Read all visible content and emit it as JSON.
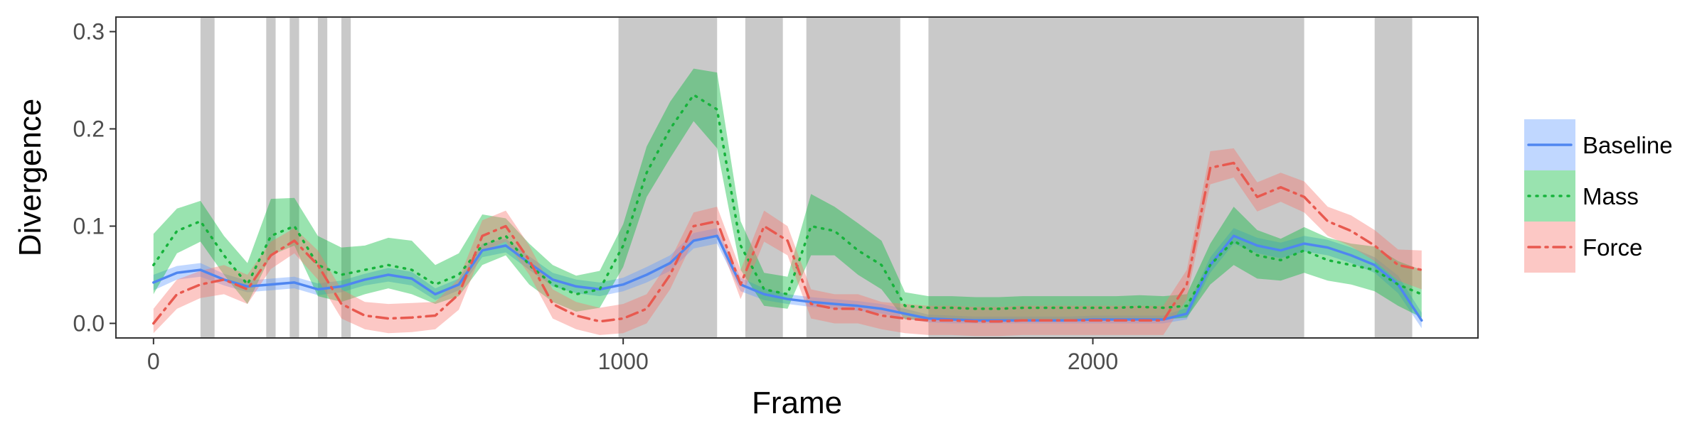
{
  "chart_data": {
    "type": "line",
    "xlabel": "Frame",
    "ylabel": "Divergence",
    "xlim": [
      -80,
      2820
    ],
    "ylim": [
      -0.015,
      0.315
    ],
    "x_ticks": [
      0,
      1000,
      2000
    ],
    "x_tick_labels": [
      "0",
      "1000",
      "2000"
    ],
    "y_ticks": [
      0.0,
      0.1,
      0.2,
      0.3
    ],
    "y_tick_labels": [
      "0.0",
      "0.1",
      "0.2",
      "0.3"
    ],
    "grid": false,
    "legend_position": "right",
    "shaded_regions": [
      [
        100,
        130
      ],
      [
        240,
        260
      ],
      [
        290,
        310
      ],
      [
        350,
        370
      ],
      [
        400,
        420
      ],
      [
        990,
        1200
      ],
      [
        1260,
        1340
      ],
      [
        1390,
        1590
      ],
      [
        1650,
        2450
      ],
      [
        2600,
        2680
      ]
    ],
    "series": [
      {
        "name": "Baseline",
        "color": "#619CFF",
        "line_color": "#4F86F0",
        "line_style": "solid",
        "x": [
          0,
          50,
          100,
          150,
          200,
          250,
          300,
          350,
          400,
          450,
          500,
          550,
          600,
          650,
          700,
          750,
          800,
          850,
          900,
          950,
          1000,
          1050,
          1100,
          1150,
          1200,
          1250,
          1300,
          1350,
          1400,
          1450,
          1500,
          1550,
          1600,
          1650,
          1700,
          1750,
          1800,
          1850,
          1900,
          1950,
          2000,
          2050,
          2100,
          2150,
          2200,
          2250,
          2300,
          2350,
          2400,
          2450,
          2500,
          2550,
          2600,
          2650,
          2700
        ],
        "y": [
          0.042,
          0.052,
          0.055,
          0.045,
          0.038,
          0.04,
          0.042,
          0.035,
          0.038,
          0.045,
          0.05,
          0.046,
          0.03,
          0.04,
          0.075,
          0.08,
          0.062,
          0.045,
          0.038,
          0.035,
          0.04,
          0.05,
          0.062,
          0.085,
          0.09,
          0.04,
          0.03,
          0.025,
          0.022,
          0.02,
          0.018,
          0.015,
          0.01,
          0.005,
          0.004,
          0.003,
          0.003,
          0.003,
          0.003,
          0.003,
          0.004,
          0.004,
          0.004,
          0.004,
          0.01,
          0.06,
          0.09,
          0.08,
          0.075,
          0.082,
          0.078,
          0.07,
          0.06,
          0.04,
          0.003
        ],
        "lower": [
          0.034,
          0.045,
          0.048,
          0.039,
          0.032,
          0.034,
          0.036,
          0.029,
          0.032,
          0.039,
          0.043,
          0.039,
          0.024,
          0.034,
          0.068,
          0.073,
          0.055,
          0.038,
          0.031,
          0.028,
          0.033,
          0.042,
          0.054,
          0.077,
          0.082,
          0.033,
          0.024,
          0.02,
          0.017,
          0.015,
          0.013,
          0.01,
          0.005,
          0.001,
          0.0,
          0.0,
          0.0,
          0.0,
          0.0,
          0.0,
          0.0,
          0.0,
          0.0,
          0.0,
          0.004,
          0.052,
          0.082,
          0.072,
          0.067,
          0.074,
          0.07,
          0.062,
          0.052,
          0.031,
          -0.005
        ],
        "upper": [
          0.05,
          0.059,
          0.062,
          0.051,
          0.044,
          0.046,
          0.048,
          0.041,
          0.044,
          0.051,
          0.057,
          0.053,
          0.036,
          0.046,
          0.082,
          0.087,
          0.069,
          0.052,
          0.045,
          0.042,
          0.047,
          0.058,
          0.07,
          0.093,
          0.098,
          0.047,
          0.036,
          0.03,
          0.027,
          0.025,
          0.023,
          0.02,
          0.015,
          0.009,
          0.008,
          0.007,
          0.007,
          0.007,
          0.007,
          0.007,
          0.008,
          0.008,
          0.008,
          0.008,
          0.016,
          0.068,
          0.098,
          0.088,
          0.083,
          0.09,
          0.086,
          0.078,
          0.068,
          0.049,
          0.011
        ]
      },
      {
        "name": "Mass",
        "color": "#00BA38",
        "line_color": "#17B33C",
        "line_style": "dotted",
        "x": [
          0,
          50,
          100,
          150,
          200,
          250,
          300,
          350,
          400,
          450,
          500,
          550,
          600,
          650,
          700,
          750,
          800,
          850,
          900,
          950,
          1000,
          1050,
          1100,
          1150,
          1200,
          1250,
          1300,
          1350,
          1400,
          1450,
          1500,
          1550,
          1600,
          1650,
          1700,
          1750,
          1800,
          1850,
          1900,
          1950,
          2000,
          2050,
          2100,
          2150,
          2200,
          2250,
          2300,
          2350,
          2400,
          2450,
          2500,
          2550,
          2600,
          2650,
          2700
        ],
        "y": [
          0.06,
          0.095,
          0.105,
          0.07,
          0.04,
          0.09,
          0.1,
          0.06,
          0.05,
          0.055,
          0.06,
          0.055,
          0.04,
          0.05,
          0.08,
          0.09,
          0.06,
          0.04,
          0.03,
          0.035,
          0.08,
          0.155,
          0.2,
          0.235,
          0.22,
          0.08,
          0.035,
          0.03,
          0.1,
          0.095,
          0.075,
          0.06,
          0.018,
          0.016,
          0.016,
          0.015,
          0.015,
          0.016,
          0.016,
          0.016,
          0.016,
          0.016,
          0.017,
          0.016,
          0.018,
          0.06,
          0.085,
          0.07,
          0.065,
          0.075,
          0.065,
          0.06,
          0.055,
          0.04,
          0.03
        ],
        "lower": [
          0.03,
          0.072,
          0.084,
          0.05,
          0.02,
          0.07,
          0.08,
          0.028,
          0.022,
          0.03,
          0.036,
          0.03,
          0.02,
          0.028,
          0.06,
          0.07,
          0.04,
          0.022,
          0.012,
          0.016,
          0.058,
          0.13,
          0.17,
          0.208,
          0.18,
          0.055,
          0.018,
          0.015,
          0.07,
          0.07,
          0.05,
          0.035,
          0.004,
          0.004,
          0.004,
          0.003,
          0.003,
          0.004,
          0.004,
          0.004,
          0.004,
          0.004,
          0.005,
          0.004,
          0.006,
          0.04,
          0.06,
          0.046,
          0.044,
          0.052,
          0.044,
          0.04,
          0.033,
          0.018,
          0.006
        ],
        "upper": [
          0.092,
          0.118,
          0.126,
          0.09,
          0.062,
          0.128,
          0.129,
          0.09,
          0.078,
          0.08,
          0.088,
          0.085,
          0.06,
          0.072,
          0.112,
          0.108,
          0.082,
          0.06,
          0.049,
          0.054,
          0.102,
          0.182,
          0.228,
          0.262,
          0.258,
          0.105,
          0.052,
          0.048,
          0.133,
          0.12,
          0.103,
          0.085,
          0.032,
          0.028,
          0.028,
          0.027,
          0.027,
          0.028,
          0.028,
          0.028,
          0.028,
          0.028,
          0.029,
          0.028,
          0.03,
          0.082,
          0.12,
          0.096,
          0.087,
          0.099,
          0.088,
          0.082,
          0.079,
          0.064,
          0.055
        ]
      },
      {
        "name": "Force",
        "color": "#F8766D",
        "line_color": "#E8594F",
        "line_style": "dashdot",
        "x": [
          0,
          50,
          100,
          150,
          200,
          250,
          300,
          350,
          400,
          450,
          500,
          550,
          600,
          650,
          700,
          750,
          800,
          850,
          900,
          950,
          1000,
          1050,
          1100,
          1150,
          1200,
          1250,
          1300,
          1350,
          1400,
          1450,
          1500,
          1550,
          1600,
          1650,
          1700,
          1750,
          1800,
          1850,
          1900,
          1950,
          2000,
          2050,
          2100,
          2150,
          2200,
          2250,
          2300,
          2350,
          2400,
          2450,
          2500,
          2550,
          2600,
          2650,
          2700
        ],
        "y": [
          0.0,
          0.03,
          0.04,
          0.045,
          0.035,
          0.07,
          0.085,
          0.06,
          0.02,
          0.008,
          0.005,
          0.006,
          0.008,
          0.03,
          0.09,
          0.1,
          0.065,
          0.02,
          0.008,
          0.002,
          0.005,
          0.015,
          0.05,
          0.1,
          0.105,
          0.04,
          0.1,
          0.085,
          0.02,
          0.015,
          0.015,
          0.008,
          0.005,
          0.003,
          0.003,
          0.002,
          0.002,
          0.003,
          0.003,
          0.003,
          0.003,
          0.003,
          0.003,
          0.003,
          0.04,
          0.16,
          0.165,
          0.13,
          0.14,
          0.13,
          0.105,
          0.095,
          0.08,
          0.06,
          0.055
        ],
        "lower": [
          -0.01,
          0.015,
          0.026,
          0.03,
          0.02,
          0.056,
          0.072,
          0.045,
          0.005,
          -0.006,
          -0.01,
          -0.009,
          -0.006,
          0.014,
          0.074,
          0.084,
          0.05,
          0.005,
          -0.006,
          -0.012,
          -0.01,
          0.0,
          0.035,
          0.086,
          0.09,
          0.025,
          0.084,
          0.07,
          0.005,
          0.0,
          0.0,
          -0.006,
          -0.01,
          -0.012,
          -0.012,
          -0.013,
          -0.013,
          -0.012,
          -0.012,
          -0.012,
          -0.012,
          -0.012,
          -0.012,
          -0.012,
          0.025,
          0.143,
          0.15,
          0.115,
          0.125,
          0.114,
          0.09,
          0.079,
          0.064,
          0.044,
          0.035
        ],
        "upper": [
          0.015,
          0.045,
          0.054,
          0.06,
          0.05,
          0.084,
          0.098,
          0.075,
          0.035,
          0.022,
          0.02,
          0.021,
          0.022,
          0.046,
          0.106,
          0.116,
          0.08,
          0.035,
          0.022,
          0.016,
          0.02,
          0.03,
          0.065,
          0.114,
          0.12,
          0.055,
          0.116,
          0.1,
          0.035,
          0.03,
          0.03,
          0.022,
          0.02,
          0.018,
          0.018,
          0.017,
          0.017,
          0.018,
          0.018,
          0.018,
          0.018,
          0.018,
          0.018,
          0.018,
          0.055,
          0.177,
          0.18,
          0.145,
          0.155,
          0.146,
          0.12,
          0.111,
          0.096,
          0.076,
          0.075
        ]
      }
    ]
  }
}
